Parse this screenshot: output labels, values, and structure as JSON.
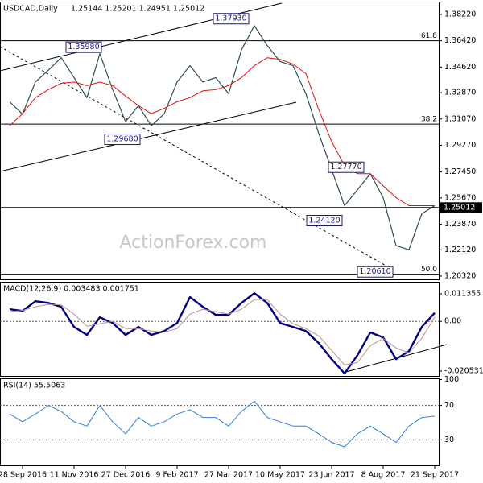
{
  "chart_data": [
    {
      "type": "line",
      "title": "USDCAD,Daily",
      "subtitle": "1.25144 1.25201 1.24951 1.25012",
      "watermark": "ActionForex.com",
      "ylim": [
        1.201,
        1.391
      ],
      "yticks": [
        {
          "value": 1.3822,
          "label": "1.38220"
        },
        {
          "value": 1.3642,
          "label": "1.36420"
        },
        {
          "value": 1.3462,
          "label": "1.34620"
        },
        {
          "value": 1.3287,
          "label": "1.32870"
        },
        {
          "value": 1.3107,
          "label": "1.31070"
        },
        {
          "value": 1.2927,
          "label": "1.29270"
        },
        {
          "value": 1.2745,
          "label": "1.27450"
        },
        {
          "value": 1.2567,
          "label": "1.25670"
        },
        {
          "value": 1.2387,
          "label": "1.23870"
        },
        {
          "value": 1.2212,
          "label": "1.22120"
        },
        {
          "value": 1.2032,
          "label": "1.20320"
        }
      ],
      "last_price": {
        "value": 1.25012,
        "label": "1.25012"
      },
      "fib_levels": [
        {
          "label": "61.8",
          "level": 1.3642
        },
        {
          "label": "38.2",
          "level": 1.3072
        },
        {
          "label": "50.0",
          "level": 1.2045
        }
      ],
      "annotations": [
        {
          "value": 1.3598,
          "label": "1.35980"
        },
        {
          "value": 1.3793,
          "label": "1.37930"
        },
        {
          "value": 1.2968,
          "label": "1.29680"
        },
        {
          "value": 1.2777,
          "label": "1.27770"
        },
        {
          "value": 1.2412,
          "label": "1.24120"
        },
        {
          "value": 1.2061,
          "label": "1.20610"
        }
      ],
      "series": [
        {
          "name": "USDCAD",
          "color": "#2f4f4f",
          "width": 1.2,
          "values": [
            1.3225,
            1.314,
            1.336,
            1.344,
            1.3526,
            1.339,
            1.3253,
            1.3554,
            1.3308,
            1.3089,
            1.3198,
            1.3061,
            1.3143,
            1.336,
            1.3472,
            1.336,
            1.339,
            1.328,
            1.358,
            1.3745,
            1.3609,
            1.35,
            1.3472,
            1.328,
            1.3007,
            1.276,
            1.2514,
            1.2623,
            1.2733,
            1.2569,
            1.224,
            1.2213,
            1.2459,
            1.2514
          ]
        },
        {
          "name": "MA",
          "color": "#e01010",
          "width": 1,
          "values": [
            1.3061,
            1.3143,
            1.3253,
            1.3308,
            1.3351,
            1.336,
            1.3335,
            1.336,
            1.3335,
            1.3264,
            1.3198,
            1.3143,
            1.318,
            1.3225,
            1.3253,
            1.33,
            1.3308,
            1.3335,
            1.339,
            1.3472,
            1.3526,
            1.3515,
            1.3483,
            1.3417,
            1.317,
            1.2952,
            1.2788,
            1.2733,
            1.2733,
            1.265,
            1.2569,
            1.2514,
            1.2514,
            1.2514
          ]
        }
      ]
    },
    {
      "type": "line",
      "title": "MACD(12,26,9) 0.003483 0.001751",
      "ylim": [
        -0.02252,
        0.01634
      ],
      "yticks": [
        0.011355,
        {
          "value": 0,
          "label": "0.00"
        },
        -0.020531
      ],
      "levels": [
        0
      ],
      "series": [
        {
          "name": "MACD",
          "color": "#000080",
          "width": 2.4,
          "values": [
            0.005,
            0.0043,
            0.0083,
            0.0076,
            0.006,
            -0.0023,
            -0.0056,
            0.0017,
            -0.0007,
            -0.0056,
            -0.0023,
            -0.0056,
            -0.004,
            -0.0007,
            0.01,
            0.006,
            0.0027,
            0.0027,
            0.0076,
            0.0116,
            0.0076,
            -0.0007,
            -0.0023,
            -0.004,
            -0.009,
            -0.0156,
            -0.0215,
            -0.014,
            -0.0046,
            -0.0066,
            -0.0156,
            -0.0123,
            -0.0023,
            0.0035
          ]
        },
        {
          "name": "Signal",
          "color": "#c09090",
          "width": 1,
          "values": [
            0.004,
            0.0045,
            0.006,
            0.007,
            0.0068,
            0.003,
            -0.002,
            -0.001,
            0.0,
            -0.003,
            -0.003,
            -0.004,
            -0.0045,
            -0.003,
            0.003,
            0.005,
            0.004,
            0.003,
            0.005,
            0.009,
            0.009,
            0.003,
            -0.001,
            -0.003,
            -0.006,
            -0.012,
            -0.018,
            -0.017,
            -0.01,
            -0.007,
            -0.011,
            -0.013,
            -0.007,
            0.0018
          ]
        }
      ]
    },
    {
      "type": "line",
      "title": "RSI(14) 55.5063",
      "ylim": [
        0.5,
        101.4
      ],
      "yticks": [
        100,
        70,
        30
      ],
      "levels": [
        30,
        70
      ],
      "categories": [
        null,
        "28 Sep 2016",
        null,
        null,
        null,
        "11 Nov 2016",
        null,
        null,
        null,
        "27 Dec 2016",
        null,
        null,
        null,
        "9 Feb 2017",
        null,
        null,
        null,
        "27 Mar 2017",
        null,
        null,
        null,
        "10 May 2017",
        null,
        null,
        null,
        "23 Jun 2017",
        null,
        null,
        null,
        "8 Aug 2017",
        null,
        null,
        null,
        "21 Sep 2017"
      ],
      "series": [
        {
          "name": "RSI",
          "color": "#2f7fe0",
          "width": 1,
          "values": [
            60,
            51,
            60,
            70,
            63,
            51,
            46,
            70,
            51,
            37,
            56,
            46,
            51,
            60,
            65,
            56,
            56,
            46,
            63,
            75,
            56,
            51,
            46,
            46,
            37,
            27,
            22,
            37,
            46,
            37,
            27,
            46,
            56,
            57.5
          ]
        }
      ]
    }
  ]
}
